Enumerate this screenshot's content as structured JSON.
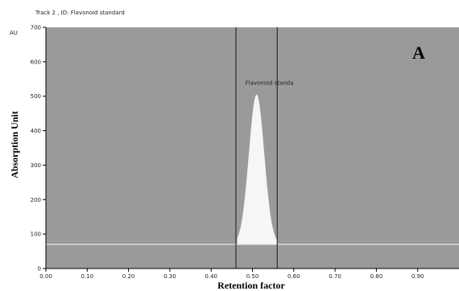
{
  "chart_data": {
    "type": "line",
    "header": "Track  2 , ID: Flavonoid standard",
    "y_unit": "AU",
    "panel_label": "A",
    "xlabel": "Retention factor",
    "ylabel": "Absorption Unit",
    "xlim": [
      0.0,
      1.0
    ],
    "ylim": [
      0,
      700
    ],
    "x_ticks": [
      0.0,
      0.1,
      0.2,
      0.3,
      0.4,
      0.5,
      0.6,
      0.7,
      0.8,
      0.9
    ],
    "x_tick_labels": [
      "0.00",
      "0.10",
      "0.20",
      "0.30",
      "0.40",
      "0.50",
      "0.60",
      "0.70",
      "0.80",
      "0.90"
    ],
    "y_ticks": [
      0,
      100,
      200,
      300,
      400,
      500,
      600,
      700
    ],
    "y_tick_labels": [
      "0",
      "100",
      "200",
      "300",
      "400",
      "500",
      "600",
      "700"
    ],
    "baseline": 70,
    "integration_bounds": [
      0.46,
      0.56
    ],
    "peak": {
      "label": "Flavonoid standa",
      "start": 0.463,
      "apex_x": 0.51,
      "apex_y": 505,
      "end": 0.56
    },
    "colors": {
      "plot_background": "#9a9a9a",
      "peak_fill": "#f6f6f6",
      "baseline": "#e6e6e6",
      "bound_lines": "#2f2f2f"
    }
  }
}
